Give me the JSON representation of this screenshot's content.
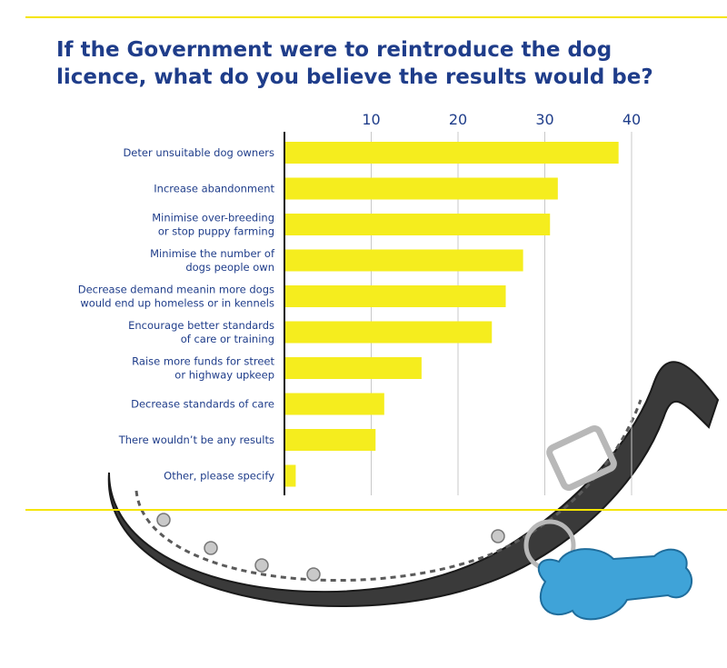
{
  "chart_data": {
    "type": "bar",
    "orientation": "horizontal",
    "title": "If the Government were to reintroduce the dog licence, what do you believe the results would be?",
    "xlabel": "",
    "ylabel": "",
    "xlim": [
      0,
      40
    ],
    "ticks": [
      10,
      20,
      30,
      40
    ],
    "grid": true,
    "bar_color": "#f5ed1e",
    "categories": [
      [
        "Deter unsuitable dog owners"
      ],
      [
        "Increase abandonment"
      ],
      [
        "Minimise over-breeding",
        "or stop puppy farming"
      ],
      [
        "Minimise the number of",
        "dogs people own"
      ],
      [
        "Decrease demand meanin more dogs",
        "would end up homeless or in kennels"
      ],
      [
        "Encourage better standards",
        "of care or training"
      ],
      [
        "Raise more funds for street",
        "or highway upkeep"
      ],
      [
        "Decrease standards of care"
      ],
      [
        "There wouldn’t be any results"
      ],
      [
        "Other, please specify"
      ]
    ],
    "values": [
      38.5,
      31.5,
      30.6,
      27.5,
      25.5,
      23.9,
      15.8,
      11.5,
      10.5,
      1.3
    ]
  },
  "colors": {
    "title": "#1f3d8a",
    "label": "#1f3d8a",
    "accent_rule": "#f5e500",
    "axis": "#111111",
    "grid": "#c8c8c8"
  }
}
